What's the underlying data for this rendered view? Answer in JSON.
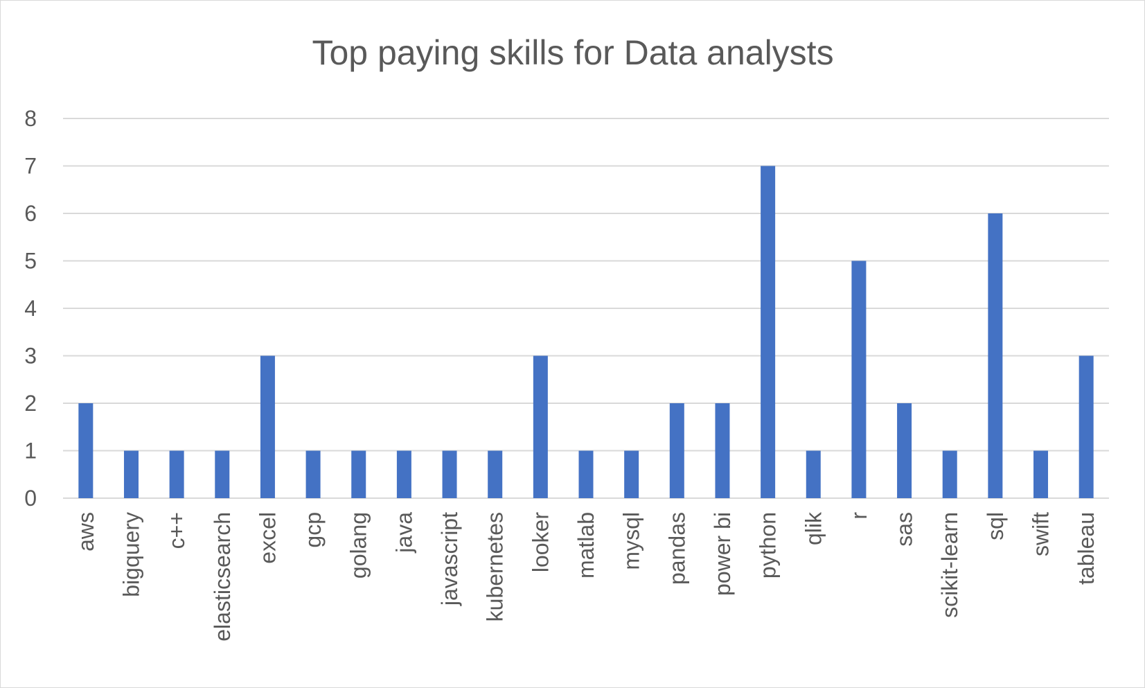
{
  "chart_data": {
    "type": "bar",
    "title": "Top paying skills for Data analysts",
    "xlabel": "",
    "ylabel": "",
    "ylim": [
      0,
      8
    ],
    "yticks": [
      0,
      1,
      2,
      3,
      4,
      5,
      6,
      7,
      8
    ],
    "grid": true,
    "legend": "none",
    "colors": {
      "bar": "#4472c4",
      "gridline": "#d9d9d9",
      "text": "#595959"
    },
    "categories": [
      "aws",
      "bigquery",
      "c++",
      "elasticsearch",
      "excel",
      "gcp",
      "golang",
      "java",
      "javascript",
      "kubernetes",
      "looker",
      "matlab",
      "mysql",
      "pandas",
      "power bi",
      "python",
      "qlik",
      "r",
      "sas",
      "scikit-learn",
      "sql",
      "swift",
      "tableau"
    ],
    "values": [
      2,
      1,
      1,
      1,
      3,
      1,
      1,
      1,
      1,
      1,
      3,
      1,
      1,
      2,
      2,
      7,
      1,
      5,
      2,
      1,
      6,
      1,
      3
    ]
  }
}
